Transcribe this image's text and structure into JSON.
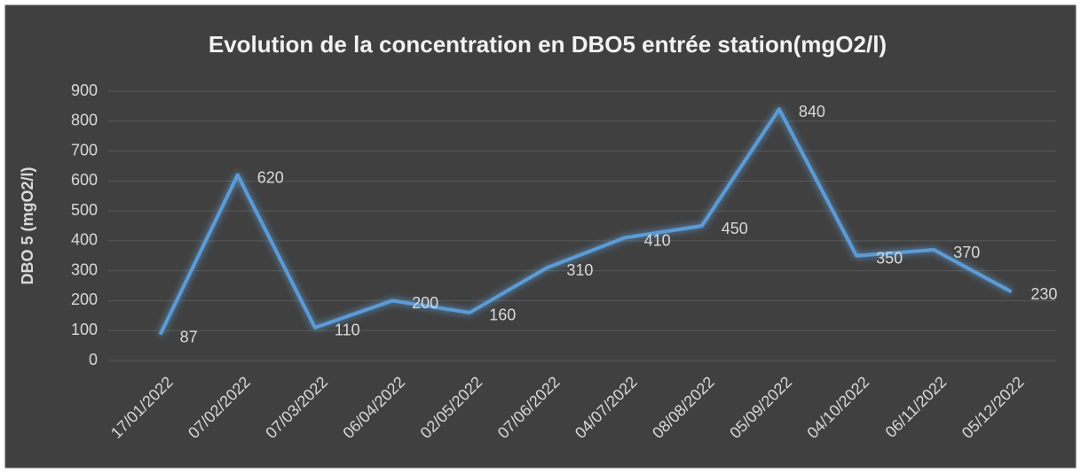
{
  "chart_data": {
    "type": "line",
    "title": "Evolution de la concentration en DBO5 entrée station(mgO2/l)",
    "y_label": "DBO 5 (mgO2/l)",
    "categories": [
      "17/01/2022",
      "07/02/2022",
      "07/03/2022",
      "06/04/2022",
      "02/05/2022",
      "07/06/2022",
      "04/07/2022",
      "08/08/2022",
      "05/09/2022",
      "04/10/2022",
      "06/11/2022",
      "05/12/2022"
    ],
    "series": [
      {
        "name": "DBO5",
        "color": "#5b9bd5",
        "values": [
          87,
          620,
          110,
          200,
          160,
          310,
          410,
          450,
          840,
          350,
          370,
          230
        ]
      }
    ],
    "ylim": [
      0,
      900
    ],
    "yticks": [
      0,
      100,
      200,
      300,
      400,
      500,
      600,
      700,
      800,
      900
    ],
    "grid": true
  }
}
